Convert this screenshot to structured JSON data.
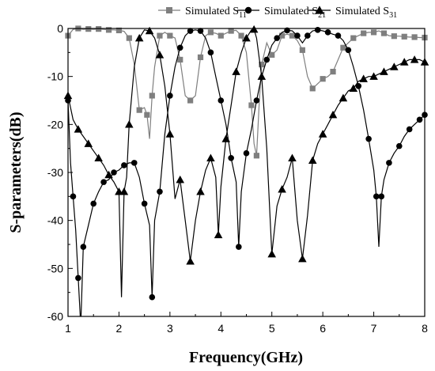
{
  "chart_data": {
    "type": "line",
    "xlabel": "Frequency(GHz)",
    "ylabel": "S-parameters(dB)",
    "xlim": [
      1,
      8
    ],
    "ylim": [
      -60,
      0
    ],
    "xticks": [
      "1",
      "2",
      "3",
      "4",
      "5",
      "6",
      "7",
      "8"
    ],
    "yticks": [
      "0",
      "-10",
      "-20",
      "-30",
      "-40",
      "-50",
      "-60"
    ],
    "grid": false,
    "legend_position": "top",
    "series": [
      {
        "name": "Simulated S",
        "name_sub": "11",
        "marker": "square",
        "color": "#7f7f7f",
        "x": [
          1.0,
          1.1,
          1.2,
          1.3,
          1.4,
          1.5,
          1.6,
          1.7,
          1.8,
          1.9,
          2.0,
          2.1,
          2.2,
          2.3,
          2.4,
          2.5,
          2.55,
          2.6,
          2.65,
          2.7,
          2.8,
          2.9,
          3.0,
          3.1,
          3.2,
          3.3,
          3.4,
          3.5,
          3.6,
          3.7,
          3.8,
          3.9,
          4.0,
          4.1,
          4.2,
          4.3,
          4.4,
          4.5,
          4.6,
          4.65,
          4.7,
          4.75,
          4.8,
          4.9,
          5.0,
          5.1,
          5.2,
          5.3,
          5.4,
          5.5,
          5.6,
          5.7,
          5.8,
          5.9,
          6.0,
          6.1,
          6.2,
          6.3,
          6.4,
          6.5,
          6.6,
          6.7,
          6.8,
          6.9,
          7.0,
          7.1,
          7.2,
          7.3,
          7.4,
          7.5,
          7.6,
          7.7,
          7.8,
          7.9,
          8.0
        ],
        "y": [
          -1.5,
          -0.2,
          0.0,
          -0.2,
          -0.1,
          -0.2,
          -0.1,
          -0.2,
          -0.3,
          -0.3,
          -0.4,
          -0.6,
          -2.0,
          -7.5,
          -17.0,
          -16.5,
          -18.0,
          -23.0,
          -14.0,
          -8.0,
          -1.5,
          -0.8,
          -1.5,
          -2.0,
          -6.5,
          -14.0,
          -15.0,
          -14.0,
          -6.0,
          -1.5,
          -0.8,
          -1.0,
          -1.5,
          -1.0,
          -0.5,
          -0.4,
          -1.5,
          -5.0,
          -16.0,
          -24.0,
          -26.5,
          -16.0,
          -7.5,
          -3.0,
          -5.5,
          -4.5,
          -1.5,
          -1.2,
          -1.5,
          -2.5,
          -4.5,
          -10.0,
          -12.5,
          -11.5,
          -10.5,
          -10.0,
          -9.0,
          -6.5,
          -4.0,
          -3.0,
          -2.0,
          -1.5,
          -1.0,
          -0.8,
          -0.8,
          -0.5,
          -1.0,
          -1.5,
          -1.6,
          -1.6,
          -1.7,
          -1.8,
          -1.8,
          -1.9,
          -1.9
        ]
      },
      {
        "name": "Simulated S",
        "name_sub": "21",
        "marker": "circle",
        "color": "#000000",
        "x": [
          1.0,
          1.05,
          1.1,
          1.15,
          1.2,
          1.25,
          1.3,
          1.4,
          1.5,
          1.6,
          1.7,
          1.8,
          1.9,
          2.0,
          2.1,
          2.2,
          2.3,
          2.4,
          2.5,
          2.6,
          2.65,
          2.7,
          2.8,
          2.9,
          3.0,
          3.1,
          3.2,
          3.3,
          3.4,
          3.5,
          3.6,
          3.7,
          3.8,
          3.9,
          4.0,
          4.1,
          4.2,
          4.3,
          4.35,
          4.4,
          4.5,
          4.6,
          4.7,
          4.8,
          4.9,
          5.0,
          5.1,
          5.2,
          5.3,
          5.4,
          5.5,
          5.6,
          5.7,
          5.8,
          5.9,
          6.0,
          6.1,
          6.2,
          6.3,
          6.4,
          6.5,
          6.6,
          6.7,
          6.8,
          6.9,
          7.0,
          7.05,
          7.1,
          7.15,
          7.2,
          7.3,
          7.4,
          7.5,
          7.6,
          7.7,
          7.8,
          7.9,
          8.0
        ],
        "y": [
          -15.0,
          -28.0,
          -35.0,
          -42.0,
          -52.0,
          -62.0,
          -45.5,
          -41.0,
          -36.5,
          -34.0,
          -32.0,
          -31.5,
          -30.0,
          -29.5,
          -28.5,
          -28.0,
          -28.0,
          -31.0,
          -36.5,
          -41.0,
          -56.0,
          -40.0,
          -34.0,
          -22.0,
          -14.0,
          -8.0,
          -4.0,
          -1.5,
          -0.5,
          -0.3,
          -0.5,
          -2.0,
          -5.0,
          -10.0,
          -15.0,
          -20.0,
          -27.0,
          -32.0,
          -45.5,
          -34.0,
          -26.0,
          -21.0,
          -15.0,
          -10.0,
          -6.5,
          -3.5,
          -2.0,
          -0.8,
          -0.4,
          -0.5,
          -1.5,
          -3.0,
          -1.5,
          -0.5,
          -0.3,
          -0.5,
          -0.8,
          -1.2,
          -1.5,
          -2.5,
          -4.5,
          -8.0,
          -12.0,
          -17.0,
          -23.0,
          -29.5,
          -35.0,
          -45.5,
          -35.0,
          -31.5,
          -28.0,
          -26.0,
          -24.5,
          -22.5,
          -21.0,
          -20.0,
          -19.0,
          -18.0
        ]
      },
      {
        "name": "Simulated S",
        "name_sub": "31",
        "marker": "triangle",
        "color": "#000000",
        "x": [
          1.0,
          1.1,
          1.2,
          1.3,
          1.4,
          1.5,
          1.6,
          1.7,
          1.8,
          1.9,
          2.0,
          2.05,
          2.1,
          2.15,
          2.2,
          2.3,
          2.4,
          2.5,
          2.6,
          2.7,
          2.8,
          2.9,
          3.0,
          3.1,
          3.2,
          3.3,
          3.4,
          3.5,
          3.6,
          3.7,
          3.8,
          3.9,
          3.95,
          4.0,
          4.1,
          4.2,
          4.3,
          4.4,
          4.5,
          4.6,
          4.65,
          4.7,
          4.8,
          4.9,
          5.0,
          5.1,
          5.2,
          5.3,
          5.4,
          5.5,
          5.6,
          5.7,
          5.8,
          5.9,
          6.0,
          6.1,
          6.2,
          6.3,
          6.4,
          6.5,
          6.6,
          6.7,
          6.8,
          6.9,
          7.0,
          7.1,
          7.2,
          7.3,
          7.4,
          7.5,
          7.6,
          7.7,
          7.8,
          7.9,
          8.0
        ],
        "y": [
          -14.0,
          -19.0,
          -21.0,
          -22.5,
          -24.0,
          -25.5,
          -27.0,
          -28.5,
          -30.5,
          -32.0,
          -34.0,
          -56.0,
          -34.0,
          -31.0,
          -20.0,
          -8.0,
          -2.0,
          -0.3,
          -0.5,
          -2.0,
          -5.5,
          -12.0,
          -22.0,
          -35.5,
          -31.5,
          -40.0,
          -48.5,
          -40.0,
          -34.0,
          -29.5,
          -27.0,
          -31.0,
          -43.0,
          -33.0,
          -23.0,
          -16.0,
          -9.0,
          -5.0,
          -2.0,
          -0.3,
          -0.2,
          -2.0,
          -10.0,
          -25.0,
          -47.0,
          -37.0,
          -33.5,
          -31.0,
          -27.0,
          -40.0,
          -48.0,
          -39.0,
          -27.5,
          -24.0,
          -22.0,
          -20.0,
          -18.0,
          -16.0,
          -14.5,
          -13.0,
          -12.5,
          -11.0,
          -10.5,
          -10.0,
          -10.0,
          -9.5,
          -9.0,
          -8.5,
          -8.0,
          -7.5,
          -7.0,
          -6.5,
          -6.5,
          -6.5,
          -7.0
        ]
      }
    ]
  }
}
